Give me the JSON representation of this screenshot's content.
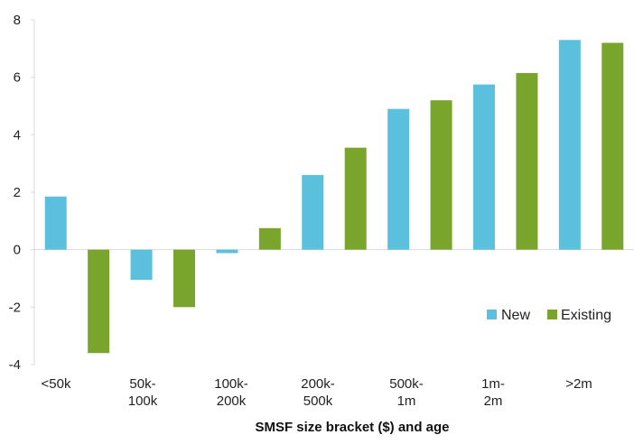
{
  "chart_data": {
    "type": "bar",
    "categories": [
      [
        "<50k"
      ],
      [
        "50k-",
        "100k"
      ],
      [
        "100k-",
        "200k"
      ],
      [
        "200k-",
        "500k"
      ],
      [
        "500k-",
        "1m"
      ],
      [
        "1m-",
        "2m"
      ],
      [
        ">2m"
      ]
    ],
    "series": [
      {
        "name": "New",
        "color": "#5bc0de",
        "values": [
          1.85,
          -1.05,
          -0.12,
          2.6,
          4.9,
          5.75,
          7.3
        ]
      },
      {
        "name": "Existing",
        "color": "#7aa52c",
        "values": [
          -3.6,
          -2.0,
          0.75,
          3.55,
          5.2,
          6.15,
          7.2
        ]
      }
    ],
    "title": "",
    "xlabel": "SMSF size bracket ($) and age",
    "ylabel": "",
    "ylim": [
      -4,
      8
    ],
    "yticks": [
      -4,
      -2,
      0,
      2,
      4,
      6,
      8
    ],
    "grid": false,
    "legend_position": "bottom-right"
  }
}
